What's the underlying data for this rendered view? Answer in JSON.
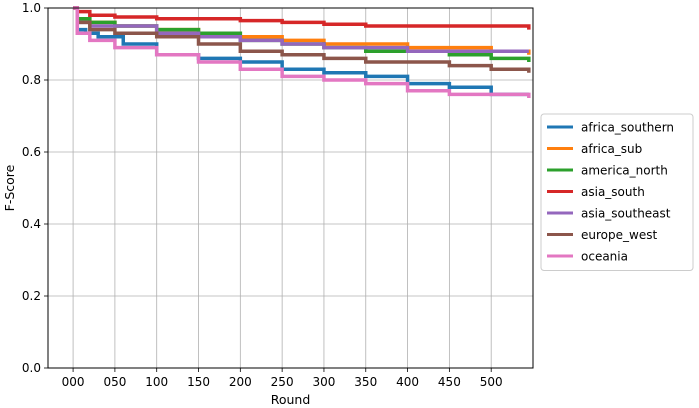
{
  "chart_data": {
    "type": "line",
    "title": "",
    "xlabel": "Round",
    "ylabel": "F-Score",
    "xlim": [
      -30,
      550
    ],
    "ylim": [
      0,
      1
    ],
    "x_ticks": [
      0,
      50,
      100,
      150,
      200,
      250,
      300,
      350,
      400,
      450,
      500
    ],
    "x_tick_labels": [
      "000",
      "050",
      "100",
      "150",
      "200",
      "250",
      "300",
      "350",
      "400",
      "450",
      "500"
    ],
    "y_ticks": [
      0,
      0.2,
      0.4,
      0.6,
      0.8,
      1.0
    ],
    "y_tick_labels": [
      "0.0",
      "0.2",
      "0.4",
      "0.6",
      "0.8",
      "1.0"
    ],
    "grid": true,
    "legend_position": "outside-right",
    "series": [
      {
        "name": "africa_southern",
        "color": "#1f77b4",
        "x": [
          0,
          5,
          15,
          30,
          60,
          100,
          150,
          200,
          250,
          300,
          350,
          400,
          450,
          500,
          545
        ],
        "y": [
          1.0,
          0.94,
          0.93,
          0.92,
          0.9,
          0.87,
          0.86,
          0.85,
          0.83,
          0.82,
          0.81,
          0.79,
          0.78,
          0.76,
          0.76
        ]
      },
      {
        "name": "africa_sub",
        "color": "#ff7f0e",
        "x": [
          0,
          5,
          20,
          50,
          100,
          150,
          200,
          250,
          300,
          350,
          400,
          450,
          500,
          545
        ],
        "y": [
          1.0,
          0.97,
          0.96,
          0.95,
          0.94,
          0.93,
          0.92,
          0.91,
          0.9,
          0.9,
          0.89,
          0.89,
          0.88,
          0.87
        ]
      },
      {
        "name": "america_north",
        "color": "#2ca02c",
        "x": [
          0,
          5,
          20,
          50,
          100,
          150,
          200,
          250,
          300,
          350,
          400,
          450,
          500,
          545
        ],
        "y": [
          1.0,
          0.97,
          0.96,
          0.95,
          0.94,
          0.93,
          0.91,
          0.9,
          0.89,
          0.88,
          0.88,
          0.87,
          0.86,
          0.85
        ]
      },
      {
        "name": "asia_south",
        "color": "#d62728",
        "x": [
          0,
          5,
          20,
          50,
          100,
          150,
          200,
          250,
          300,
          350,
          400,
          450,
          500,
          540,
          545
        ],
        "y": [
          1.0,
          0.99,
          0.98,
          0.975,
          0.97,
          0.97,
          0.965,
          0.96,
          0.955,
          0.95,
          0.95,
          0.95,
          0.95,
          0.95,
          0.94
        ]
      },
      {
        "name": "asia_southeast",
        "color": "#9467bd",
        "x": [
          0,
          5,
          20,
          50,
          100,
          150,
          200,
          250,
          300,
          350,
          400,
          450,
          500,
          545
        ],
        "y": [
          1.0,
          0.96,
          0.95,
          0.95,
          0.93,
          0.92,
          0.91,
          0.9,
          0.89,
          0.89,
          0.88,
          0.88,
          0.88,
          0.88
        ]
      },
      {
        "name": "europe_west",
        "color": "#8c564b",
        "x": [
          0,
          5,
          20,
          50,
          100,
          150,
          200,
          250,
          300,
          350,
          400,
          450,
          500,
          545
        ],
        "y": [
          1.0,
          0.96,
          0.94,
          0.93,
          0.92,
          0.9,
          0.88,
          0.87,
          0.86,
          0.85,
          0.85,
          0.84,
          0.83,
          0.82
        ]
      },
      {
        "name": "oceania",
        "color": "#e377c2",
        "x": [
          0,
          5,
          20,
          50,
          100,
          150,
          200,
          250,
          300,
          350,
          400,
          450,
          500,
          545
        ],
        "y": [
          1.0,
          0.93,
          0.91,
          0.89,
          0.87,
          0.85,
          0.83,
          0.81,
          0.8,
          0.79,
          0.77,
          0.76,
          0.76,
          0.75
        ]
      }
    ]
  }
}
